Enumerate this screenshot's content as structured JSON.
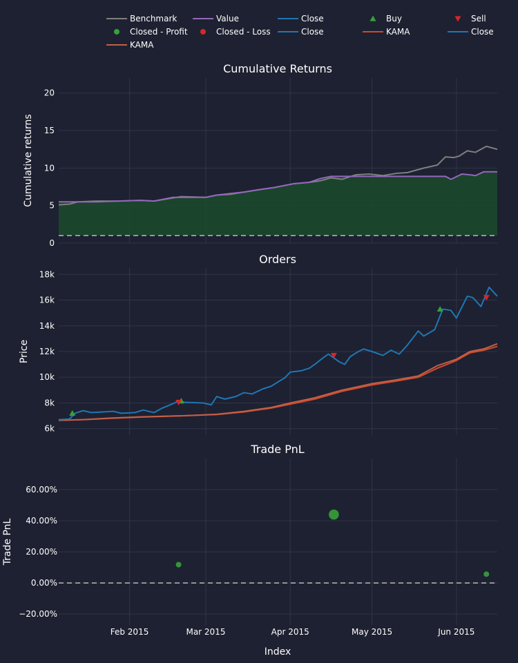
{
  "colors": {
    "background": "#1e2131",
    "grid": "#2f3549",
    "benchmark": "#7f7f7f",
    "value": "#9467bd",
    "close": "#1f77b4",
    "buy": "#37a13a",
    "sell": "#d62728",
    "profit": "#37a13a",
    "loss": "#d62728",
    "kama": "#d14a2b",
    "kama2": "#c0604a",
    "fill": "#1b4a2b",
    "dash": "#bbbbbb"
  },
  "legend": [
    {
      "label": "Benchmark",
      "kind": "line",
      "color": "#7f7f7f"
    },
    {
      "label": "Value",
      "kind": "line",
      "color": "#9467bd"
    },
    {
      "label": "Close",
      "kind": "line",
      "color": "#1f77b4"
    },
    {
      "label": "Buy",
      "kind": "tri-up",
      "color": "#37a13a"
    },
    {
      "label": "Sell",
      "kind": "tri-down",
      "color": "#d62728"
    },
    {
      "label": "Closed - Profit",
      "kind": "dot",
      "color": "#37a13a"
    },
    {
      "label": "Closed - Loss",
      "kind": "dot",
      "color": "#d62728"
    },
    {
      "label": "Close",
      "kind": "line",
      "color": "#1f77b4"
    },
    {
      "label": "KAMA",
      "kind": "line",
      "color": "#d14a2b"
    },
    {
      "label": "Close",
      "kind": "line",
      "color": "#1f77b4"
    },
    {
      "label": "KAMA",
      "kind": "line",
      "color": "#c0604a"
    }
  ],
  "xaxis": {
    "label": "Index",
    "start": "2015-01-06",
    "end": "2015-06-16",
    "ticks": [
      {
        "date": "2015-02-01",
        "label": "Feb 2015"
      },
      {
        "date": "2015-03-01",
        "label": "Mar 2015"
      },
      {
        "date": "2015-04-01",
        "label": "Apr 2015"
      },
      {
        "date": "2015-05-01",
        "label": "May 2015"
      },
      {
        "date": "2015-06-01",
        "label": "Jun 2015"
      }
    ]
  },
  "chart_data": [
    {
      "type": "line",
      "title": "Cumulative Returns",
      "ylabel": "Cumulative returns",
      "ylim": [
        0,
        22
      ],
      "yticks": [
        0,
        5,
        10,
        15,
        20
      ],
      "ytick_labels": [
        "0",
        "5",
        "10",
        "15",
        "20"
      ],
      "baseline": 1,
      "series": [
        {
          "name": "Benchmark",
          "points": [
            [
              "2015-01-06",
              5.1
            ],
            [
              "2015-01-10",
              5.2
            ],
            [
              "2015-01-13",
              5.5
            ],
            [
              "2015-01-20",
              5.6
            ],
            [
              "2015-01-28",
              5.6
            ],
            [
              "2015-02-05",
              5.7
            ],
            [
              "2015-02-10",
              5.6
            ],
            [
              "2015-02-20",
              6.2
            ],
            [
              "2015-03-01",
              6.1
            ],
            [
              "2015-03-05",
              6.4
            ],
            [
              "2015-03-10",
              6.5
            ],
            [
              "2015-03-15",
              6.8
            ],
            [
              "2015-03-22",
              7.2
            ],
            [
              "2015-03-26",
              7.4
            ],
            [
              "2015-04-02",
              7.9
            ],
            [
              "2015-04-08",
              8.1
            ],
            [
              "2015-04-12",
              8.3
            ],
            [
              "2015-04-16",
              8.7
            ],
            [
              "2015-04-20",
              8.5
            ],
            [
              "2015-04-25",
              9.1
            ],
            [
              "2015-04-30",
              9.2
            ],
            [
              "2015-05-05",
              9.0
            ],
            [
              "2015-05-10",
              9.3
            ],
            [
              "2015-05-14",
              9.4
            ],
            [
              "2015-05-20",
              10.0
            ],
            [
              "2015-05-25",
              10.4
            ],
            [
              "2015-05-28",
              11.5
            ],
            [
              "2015-05-31",
              11.4
            ],
            [
              "2015-06-02",
              11.6
            ],
            [
              "2015-06-05",
              12.3
            ],
            [
              "2015-06-08",
              12.1
            ],
            [
              "2015-06-12",
              12.9
            ],
            [
              "2015-06-16",
              12.5
            ]
          ]
        },
        {
          "name": "Value",
          "points": [
            [
              "2015-01-06",
              5.5
            ],
            [
              "2015-01-13",
              5.5
            ],
            [
              "2015-01-20",
              5.5
            ],
            [
              "2015-01-28",
              5.6
            ],
            [
              "2015-02-05",
              5.7
            ],
            [
              "2015-02-10",
              5.6
            ],
            [
              "2015-02-17",
              6.1
            ],
            [
              "2015-03-01",
              6.1
            ],
            [
              "2015-03-05",
              6.4
            ],
            [
              "2015-03-10",
              6.6
            ],
            [
              "2015-03-15",
              6.8
            ],
            [
              "2015-03-22",
              7.2
            ],
            [
              "2015-03-26",
              7.4
            ],
            [
              "2015-04-02",
              7.9
            ],
            [
              "2015-04-08",
              8.1
            ],
            [
              "2015-04-12",
              8.6
            ],
            [
              "2015-04-16",
              8.9
            ],
            [
              "2015-04-20",
              8.9
            ],
            [
              "2015-05-05",
              8.9
            ],
            [
              "2015-05-20",
              8.9
            ],
            [
              "2015-05-28",
              8.9
            ],
            [
              "2015-05-30",
              8.5
            ],
            [
              "2015-06-03",
              9.2
            ],
            [
              "2015-06-06",
              9.1
            ],
            [
              "2015-06-08",
              9.0
            ],
            [
              "2015-06-11",
              9.5
            ],
            [
              "2015-06-16",
              9.5
            ]
          ]
        }
      ]
    },
    {
      "type": "line",
      "title": "Orders",
      "ylabel": "Price",
      "ylim": [
        5500,
        18500
      ],
      "yticks": [
        6000,
        8000,
        10000,
        12000,
        14000,
        16000,
        18000
      ],
      "ytick_labels": [
        "6k",
        "8k",
        "10k",
        "12k",
        "14k",
        "16k",
        "18k"
      ],
      "series": [
        {
          "name": "Close",
          "points": [
            [
              "2015-01-06",
              6700
            ],
            [
              "2015-01-10",
              6750
            ],
            [
              "2015-01-12",
              7200
            ],
            [
              "2015-01-15",
              7400
            ],
            [
              "2015-01-18",
              7250
            ],
            [
              "2015-01-22",
              7300
            ],
            [
              "2015-01-26",
              7350
            ],
            [
              "2015-01-29",
              7200
            ],
            [
              "2015-02-03",
              7250
            ],
            [
              "2015-02-06",
              7450
            ],
            [
              "2015-02-10",
              7250
            ],
            [
              "2015-02-13",
              7600
            ],
            [
              "2015-02-17",
              7950
            ],
            [
              "2015-02-19",
              8150
            ],
            [
              "2015-02-21",
              8050
            ],
            [
              "2015-02-28",
              8000
            ],
            [
              "2015-03-03",
              7850
            ],
            [
              "2015-03-05",
              8500
            ],
            [
              "2015-03-08",
              8300
            ],
            [
              "2015-03-12",
              8500
            ],
            [
              "2015-03-15",
              8800
            ],
            [
              "2015-03-18",
              8700
            ],
            [
              "2015-03-22",
              9100
            ],
            [
              "2015-03-25",
              9300
            ],
            [
              "2015-03-28",
              9700
            ],
            [
              "2015-03-30",
              9950
            ],
            [
              "2015-04-01",
              10400
            ],
            [
              "2015-04-05",
              10500
            ],
            [
              "2015-04-08",
              10700
            ],
            [
              "2015-04-10",
              11000
            ],
            [
              "2015-04-13",
              11500
            ],
            [
              "2015-04-15",
              11800
            ],
            [
              "2015-04-17",
              11500
            ],
            [
              "2015-04-19",
              11200
            ],
            [
              "2015-04-21",
              11000
            ],
            [
              "2015-04-23",
              11600
            ],
            [
              "2015-04-26",
              12000
            ],
            [
              "2015-04-28",
              12200
            ],
            [
              "2015-05-01",
              12000
            ],
            [
              "2015-05-05",
              11700
            ],
            [
              "2015-05-08",
              12100
            ],
            [
              "2015-05-11",
              11800
            ],
            [
              "2015-05-14",
              12500
            ],
            [
              "2015-05-18",
              13600
            ],
            [
              "2015-05-20",
              13200
            ],
            [
              "2015-05-24",
              13700
            ],
            [
              "2015-05-27",
              15300
            ],
            [
              "2015-05-30",
              15200
            ],
            [
              "2015-06-01",
              14600
            ],
            [
              "2015-06-05",
              16300
            ],
            [
              "2015-06-07",
              16200
            ],
            [
              "2015-06-10",
              15500
            ],
            [
              "2015-06-13",
              17000
            ],
            [
              "2015-06-16",
              16300
            ]
          ]
        },
        {
          "name": "KAMA",
          "points": [
            [
              "2015-01-06",
              6650
            ],
            [
              "2015-01-15",
              6700
            ],
            [
              "2015-01-25",
              6800
            ],
            [
              "2015-02-05",
              6900
            ],
            [
              "2015-02-20",
              7000
            ],
            [
              "2015-03-05",
              7100
            ],
            [
              "2015-03-15",
              7300
            ],
            [
              "2015-03-25",
              7600
            ],
            [
              "2015-04-01",
              7900
            ],
            [
              "2015-04-10",
              8300
            ],
            [
              "2015-04-20",
              8900
            ],
            [
              "2015-05-01",
              9400
            ],
            [
              "2015-05-10",
              9700
            ],
            [
              "2015-05-18",
              10000
            ],
            [
              "2015-05-25",
              10700
            ],
            [
              "2015-06-01",
              11300
            ],
            [
              "2015-06-06",
              11900
            ],
            [
              "2015-06-11",
              12100
            ],
            [
              "2015-06-16",
              12400
            ]
          ]
        },
        {
          "name": "KAMA",
          "points": [
            [
              "2015-01-06",
              6650
            ],
            [
              "2015-01-15",
              6700
            ],
            [
              "2015-01-25",
              6820
            ],
            [
              "2015-02-05",
              6920
            ],
            [
              "2015-02-20",
              7000
            ],
            [
              "2015-03-05",
              7120
            ],
            [
              "2015-03-15",
              7350
            ],
            [
              "2015-03-25",
              7650
            ],
            [
              "2015-04-01",
              8000
            ],
            [
              "2015-04-10",
              8400
            ],
            [
              "2015-04-20",
              9000
            ],
            [
              "2015-05-01",
              9500
            ],
            [
              "2015-05-10",
              9800
            ],
            [
              "2015-05-18",
              10100
            ],
            [
              "2015-05-25",
              10900
            ],
            [
              "2015-06-01",
              11400
            ],
            [
              "2015-06-06",
              12000
            ],
            [
              "2015-06-11",
              12200
            ],
            [
              "2015-06-16",
              12600
            ]
          ]
        }
      ],
      "markers": [
        {
          "name": "Buy",
          "shape": "tri-up",
          "points": [
            [
              "2015-01-11",
              7200
            ],
            [
              "2015-02-20",
              8150
            ],
            [
              "2015-05-26",
              15300
            ]
          ]
        },
        {
          "name": "Sell",
          "shape": "tri-down",
          "points": [
            [
              "2015-02-19",
              8050
            ],
            [
              "2015-04-17",
              11700
            ],
            [
              "2015-06-12",
              16200
            ]
          ]
        }
      ]
    },
    {
      "type": "scatter",
      "title": "Trade PnL",
      "ylabel": "Trade PnL",
      "ylim": [
        -0.27,
        0.8
      ],
      "yticks": [
        -0.2,
        0,
        0.2,
        0.4,
        0.6
      ],
      "ytick_labels": [
        "−20.00%",
        "0.00%",
        "20.00%",
        "40.00%",
        "60.00%"
      ],
      "baseline": 0,
      "series": [
        {
          "name": "Closed - Profit",
          "points": [
            [
              "2015-02-19",
              0.118,
              6
            ],
            [
              "2015-04-17",
              0.44,
              11
            ],
            [
              "2015-06-12",
              0.057,
              6
            ]
          ]
        }
      ]
    }
  ]
}
